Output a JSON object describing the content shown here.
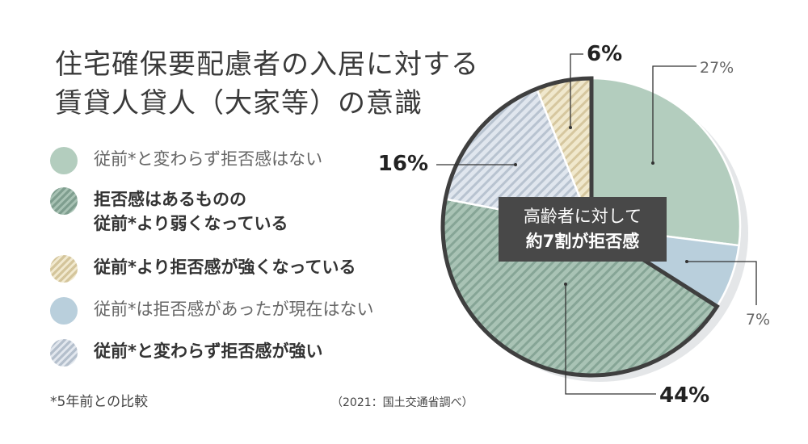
{
  "title_lines": [
    "住宅確保要配慮者の入居に対する",
    "賃貸人貸人（大家等）の意識"
  ],
  "colors": {
    "no_refusal": "#b3cdbe",
    "weakened": "#8fac9e",
    "stronger": "#e2d6b3",
    "used_to": "#b9cfdc",
    "still_strong": "#cbd3de",
    "outline": "#3f3f3f",
    "callout_bg": "#484848"
  },
  "legend": [
    {
      "lines": [
        "従前*と変わらず拒否感はない"
      ],
      "style": "light"
    },
    {
      "lines": [
        "拒否感はあるものの",
        "従前*より弱くなっている"
      ],
      "style": "bold"
    },
    {
      "lines": [
        "従前*より拒否感が強くなっている"
      ],
      "style": "bold"
    },
    {
      "lines": [
        "従前*は拒否感があったが現在はない"
      ],
      "style": "light"
    },
    {
      "lines": [
        "従前*と変わらず拒否感が強い"
      ],
      "style": "bold"
    }
  ],
  "footnote": "*5年前との比較",
  "source": "（2021：国土交通省調べ）",
  "callout": {
    "lines": [
      "高齢者に対して",
      "約7割が拒否感"
    ]
  },
  "chart_data": {
    "type": "pie",
    "title": "住宅確保要配慮者の入居に対する賃貸人貸人（大家等）の意識",
    "slices": [
      {
        "category": "従前*と変わらず拒否感はない",
        "value": 27,
        "label": "27%",
        "color_key": "no_refusal"
      },
      {
        "category": "従前*は拒否感があったが現在はない",
        "value": 7,
        "label": "7%",
        "color_key": "used_to"
      },
      {
        "category": "拒否感はあるものの従前*より弱くなっている",
        "value": 44,
        "label": "44%",
        "color_key": "weakened"
      },
      {
        "category": "従前*と変わらず拒否感が強い",
        "value": 16,
        "label": "16%",
        "color_key": "still_strong"
      },
      {
        "category": "従前*より拒否感が強くなっている",
        "value": 6,
        "label": "6%",
        "color_key": "stronger"
      }
    ],
    "start": "12 o'clock",
    "direction": "clockwise",
    "highlighted_categories": [
      "拒否感はあるものの従前*より弱くなっている",
      "従前*と変わらず拒否感が強い",
      "従前*より拒否感が強くなっている"
    ],
    "legend_position": "left"
  }
}
